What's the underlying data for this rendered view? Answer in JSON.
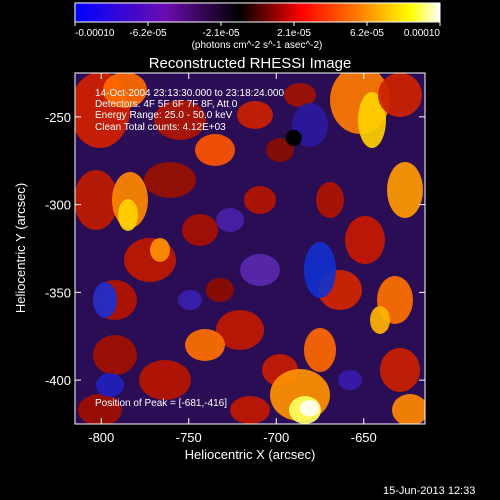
{
  "chart_data": {
    "type": "heatmap",
    "title": "Reconstructed RHESSI Image",
    "xlabel": "Heliocentric X (arcsec)",
    "ylabel": "Heliocentric Y (arcsec)",
    "xlim": [
      -815,
      -615
    ],
    "ylim": [
      -425,
      -225
    ],
    "x_ticks": [
      "-800",
      "-750",
      "-700",
      "-650"
    ],
    "y_ticks": [
      "-250",
      "-300",
      "-350",
      "-400"
    ],
    "colorbar": {
      "range": [
        -0.0001,
        0.0001
      ],
      "tick_labels": [
        "-0.00010",
        "-6.2e-05",
        "-2.1e-05",
        "2.1e-05",
        "6.2e-05",
        "0.00010"
      ],
      "unit_label": "(photons cm^-2 s^-1 asec^-2)",
      "colormap": [
        "#0000ff",
        "#6a0dad",
        "#000000",
        "#ff0000",
        "#ff8000",
        "#ffff00",
        "#ffffff"
      ]
    },
    "annotations": [
      "14-Oct-2004 23:13:30.000 to 23:18:24.000",
      "Detectors: 4F 5F 6F 7F 8F, Att 0",
      "Energy Range: 25.0 - 50.0 keV",
      "Clean     Total counts: 4.12E+03"
    ],
    "peak_label": "Position of Peak = [-681,-416]",
    "peak_position": [
      -681,
      -416
    ]
  },
  "timestamp": "15-Jun-2013 12:33"
}
